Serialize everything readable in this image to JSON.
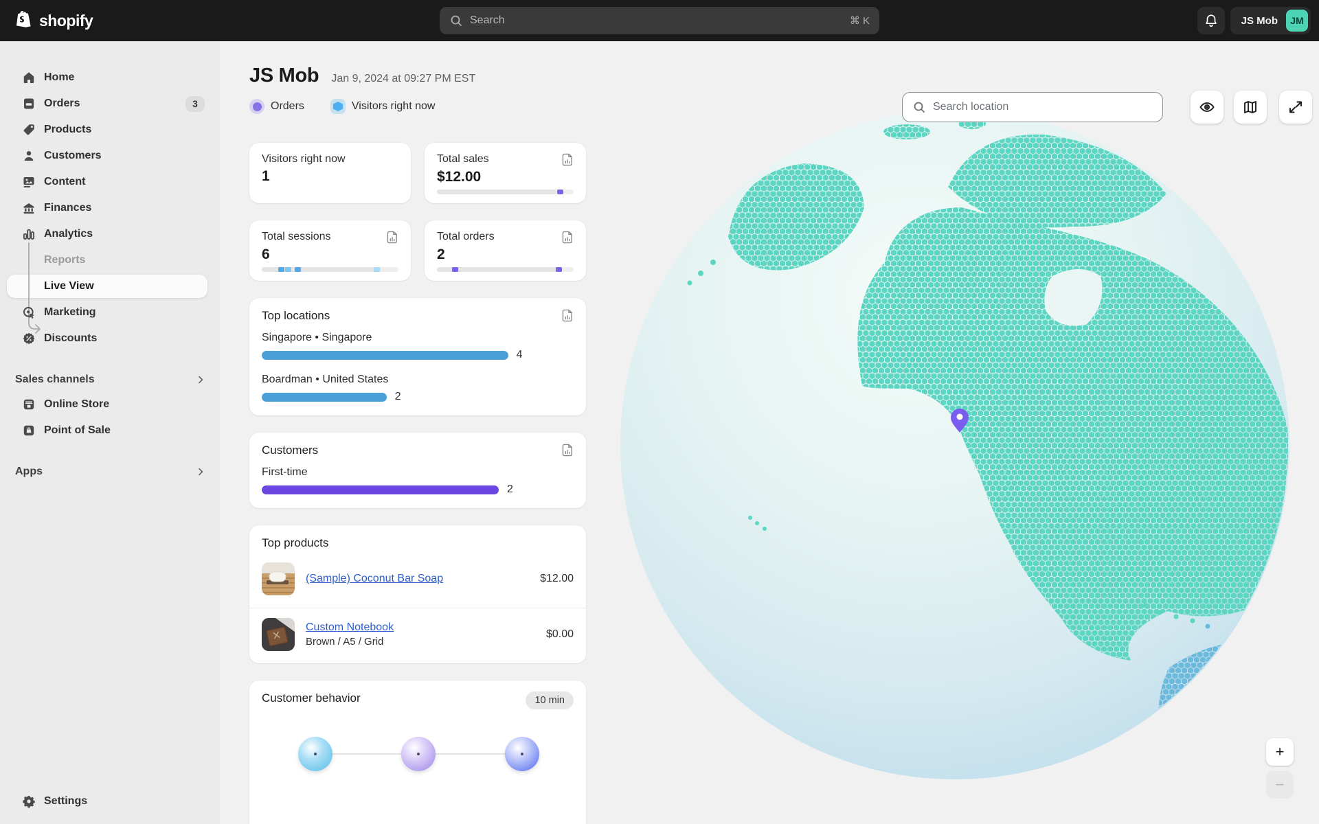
{
  "topbar": {
    "logo_text": "shopify",
    "search_placeholder": "Search",
    "shortcut": "⌘ K",
    "store_name": "JS Mob",
    "avatar_initials": "JM"
  },
  "sidebar": {
    "home": "Home",
    "orders": "Orders",
    "orders_badge": "3",
    "products": "Products",
    "customers": "Customers",
    "content": "Content",
    "finances": "Finances",
    "analytics": "Analytics",
    "reports": "Reports",
    "live_view": "Live View",
    "marketing": "Marketing",
    "discounts": "Discounts",
    "sales_channels": "Sales channels",
    "online_store": "Online Store",
    "point_of_sale": "Point of Sale",
    "apps": "Apps",
    "settings": "Settings"
  },
  "header": {
    "title": "JS Mob",
    "timestamp": "Jan 9, 2024 at 09:27 PM EST",
    "legend": [
      {
        "label": "Orders",
        "color": "#8673E8"
      },
      {
        "label": "Visitors right now",
        "color": "#4AAEF0"
      }
    ]
  },
  "metrics": [
    {
      "title": "Visitors right now",
      "value": "1"
    },
    {
      "title": "Total sales",
      "value": "$12.00",
      "bar": {
        "markers": [
          {
            "pos": 90,
            "color": "#7B61E8"
          }
        ]
      }
    },
    {
      "title": "Total sessions",
      "value": "6",
      "bar": {
        "markers": [
          {
            "pos": 14,
            "color": "#4FA8E8"
          },
          {
            "pos": 19,
            "color": "#83C6F0"
          },
          {
            "pos": 26,
            "color": "#4FA8E8"
          },
          {
            "pos": 84,
            "color": "#ABDAF4"
          }
        ]
      }
    },
    {
      "title": "Total orders",
      "value": "2",
      "bar": {
        "markers": [
          {
            "pos": 13,
            "color": "#7B61E8"
          },
          {
            "pos": 89,
            "color": "#7B61E8"
          }
        ]
      }
    }
  ],
  "top_locations": {
    "title": "Top locations",
    "entries": [
      {
        "name": "Singapore • Singapore",
        "value": "4",
        "width_pct": 79,
        "color": "#4A9FD8"
      },
      {
        "name": "Boardman • United States",
        "value": "2",
        "width_pct": 40,
        "color": "#4A9FD8"
      }
    ]
  },
  "customers": {
    "title": "Customers",
    "entries": [
      {
        "name": "First-time",
        "value": "2",
        "width_pct": 76,
        "color": "#6C46E0"
      }
    ]
  },
  "top_products": {
    "title": "Top products",
    "rows": [
      {
        "name": "(Sample) Coconut Bar Soap",
        "variant": "",
        "price": "$12.00"
      },
      {
        "name": "Custom Notebook",
        "variant": "Brown / A5 / Grid",
        "price": "$0.00"
      }
    ]
  },
  "customer_behavior": {
    "title": "Customer behavior",
    "badge": "10 min",
    "balls": [
      {
        "inner": "#a9def5",
        "outer": "#55bce8"
      },
      {
        "inner": "#d9cdf8",
        "outer": "#9a83e8"
      },
      {
        "inner": "#bcc6fa",
        "outer": "#4e66ee"
      }
    ]
  },
  "map": {
    "search_placeholder": "Search location",
    "zoom_in": "+",
    "zoom_out": "−",
    "land_color": "#5cd6c2",
    "land_color_edge": "#6cb9dc",
    "pin_color": "#7A5CF0"
  }
}
